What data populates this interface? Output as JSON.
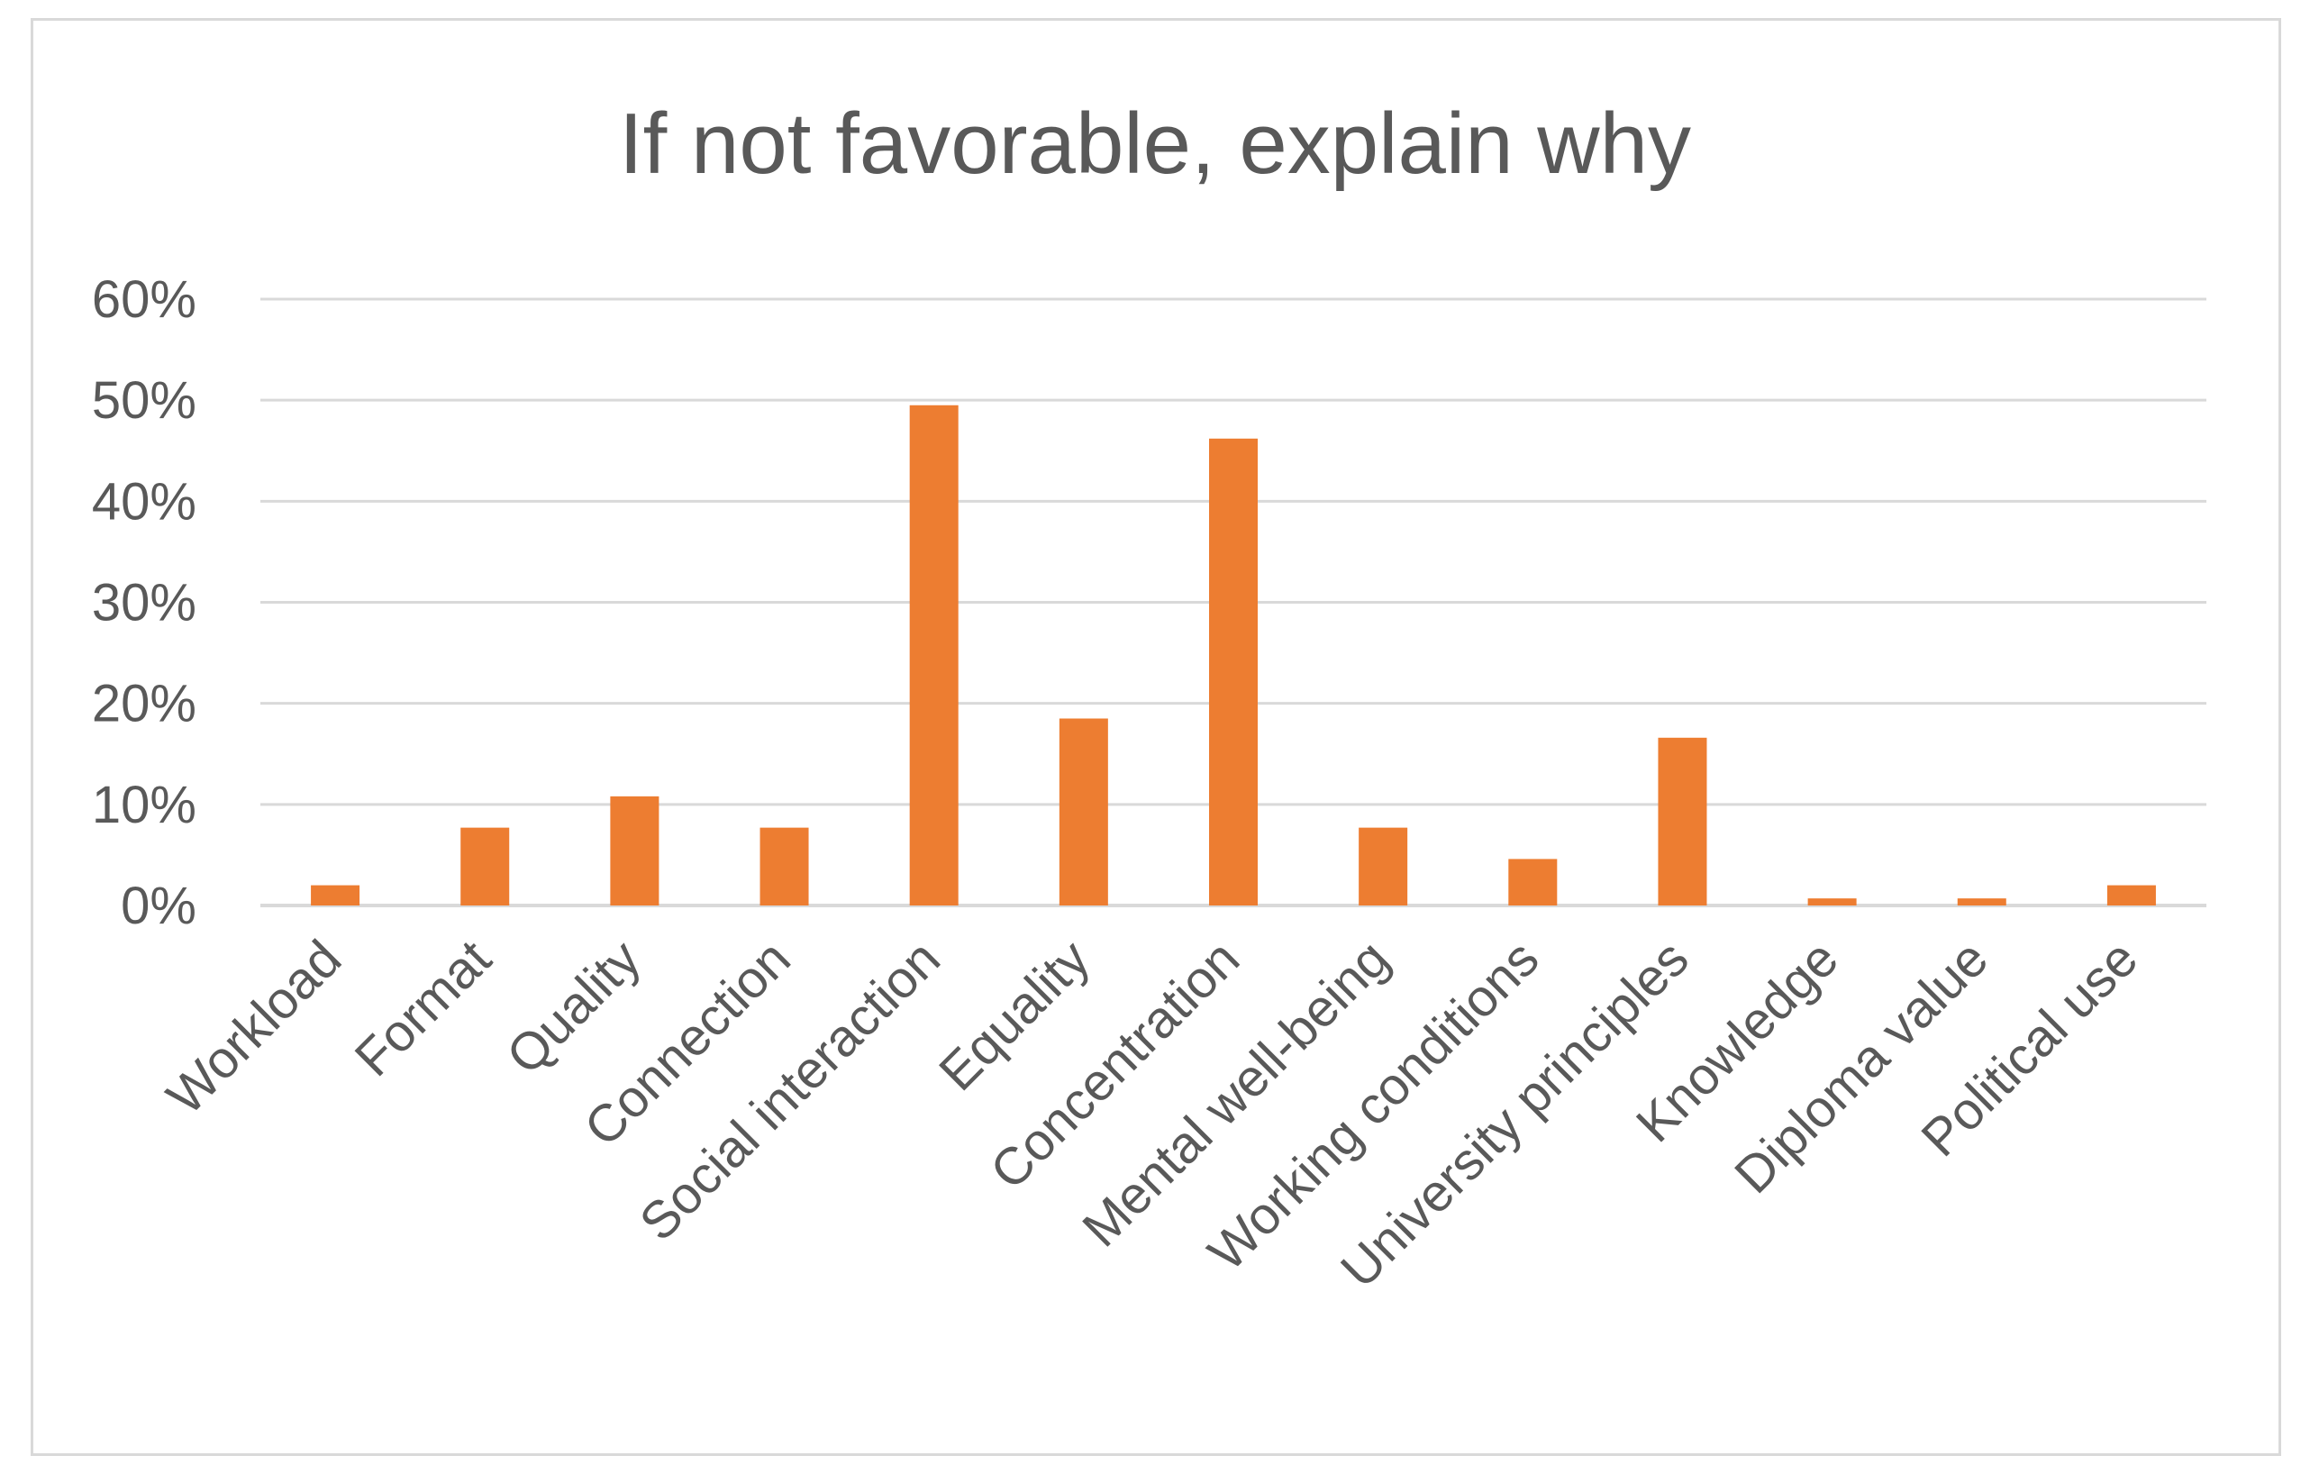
{
  "chart_data": {
    "type": "bar",
    "title": "If not favorable, explain why",
    "xlabel": "",
    "ylabel": "",
    "categories": [
      "Workload",
      "Format",
      "Quality",
      "Connection",
      "Social interaction",
      "Equality",
      "Concentration",
      "Mental well-being",
      "Working conditions",
      "University principles",
      "Knowledge",
      "Diploma value",
      "Political use"
    ],
    "values": [
      2,
      7.7,
      10.8,
      7.7,
      49.5,
      18.5,
      46.2,
      7.7,
      4.6,
      16.6,
      0.7,
      0.7,
      2
    ],
    "ylim": [
      0,
      60
    ],
    "yticks": [
      "0%",
      "10%",
      "20%",
      "30%",
      "40%",
      "50%",
      "60%"
    ],
    "ytick_values": [
      0,
      10,
      20,
      30,
      40,
      50,
      60
    ],
    "grid": true,
    "legend": "none",
    "colors": {
      "bar": "#ED7D31",
      "grid": "#D9D9D9",
      "text": "#595959",
      "border": "#D9D9D9"
    }
  }
}
